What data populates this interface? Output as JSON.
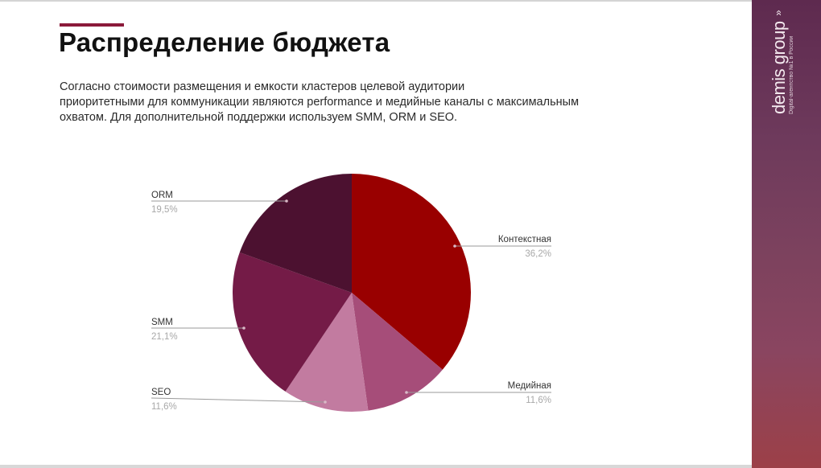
{
  "slide": {
    "title": "Распределение бюджета",
    "description_lines": [
      "Согласно стоимости размещения и емкости кластеров целевой аудитории",
      "приоритетными для коммуникации являются performance и медийные каналы с максимальным",
      "охватом. Для дополнительной поддержки используем SMM, ORM и SEO."
    ],
    "accent_color": "#8b1a3a"
  },
  "sidebar": {
    "brand": "demis group",
    "tagline": "Digital-агентство №1 в России",
    "brand_icon": "double-chevron-up-icon",
    "gradient_top": "#5e2a4f",
    "gradient_bottom": "#9c4048"
  },
  "chart_data": {
    "type": "pie",
    "title": "",
    "start_angle": "12 o'clock, clockwise",
    "legend_position": "leader-line labels",
    "slices": [
      {
        "label": "Контекстная",
        "value": 36.2,
        "display": "36,2%",
        "color": "#990000"
      },
      {
        "label": "Медийная",
        "value": 11.6,
        "display": "11,6%",
        "color": "#a64d79"
      },
      {
        "label": "SEO",
        "value": 11.6,
        "display": "11,6%",
        "color": "#c27ba0"
      },
      {
        "label": "SMM",
        "value": 21.1,
        "display": "21,1%",
        "color": "#741b47"
      },
      {
        "label": "ORM",
        "value": 19.5,
        "display": "19,5%",
        "color": "#4c1130"
      }
    ]
  }
}
